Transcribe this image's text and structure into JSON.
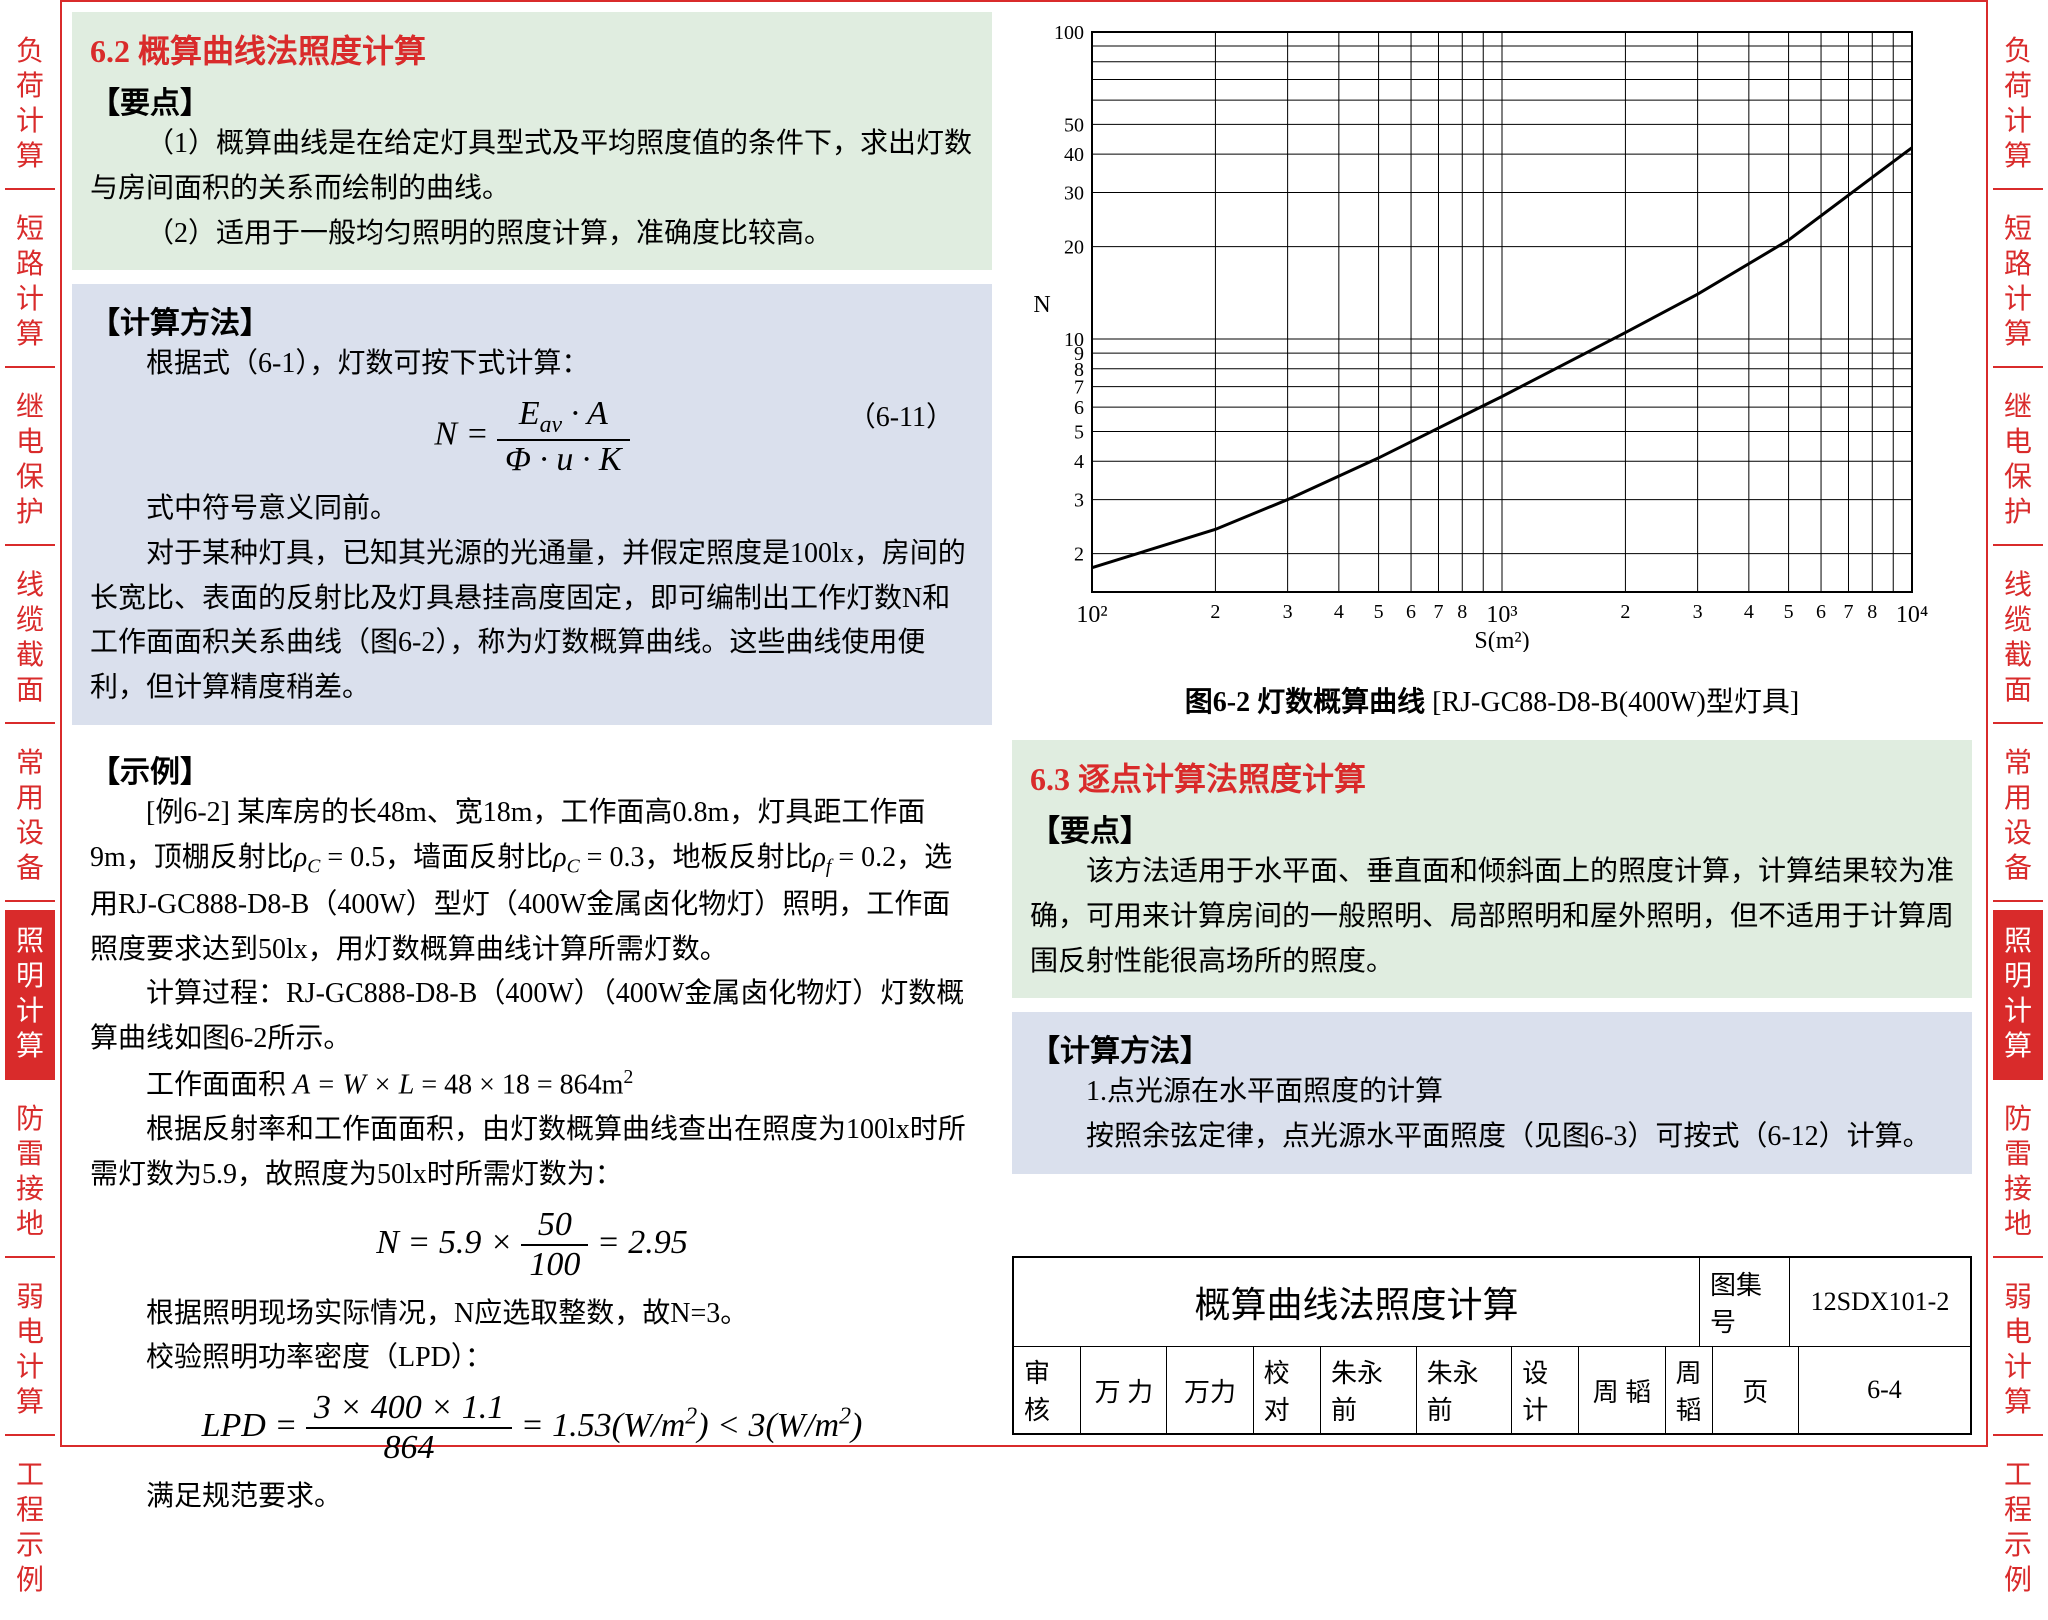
{
  "tabs": [
    {
      "label": "负荷计算",
      "active": false
    },
    {
      "label": "短路计算",
      "active": false
    },
    {
      "label": "继电保护",
      "active": false
    },
    {
      "label": "线缆截面",
      "active": false
    },
    {
      "label": "常用设备",
      "active": false
    },
    {
      "label": "照明计算",
      "active": true
    },
    {
      "label": "防雷接地",
      "active": false
    },
    {
      "label": "弱电计算",
      "active": false
    },
    {
      "label": "工程示例",
      "active": false
    }
  ],
  "section62": {
    "heading": "6.2 概算曲线法照度计算",
    "keypoints_title": "【要点】",
    "keypoints_1": "（1）概算曲线是在给定灯具型式及平均照度值的条件下，求出灯数与房间面积的关系而绘制的曲线。",
    "keypoints_2": "（2）适用于一般均匀照明的照度计算，准确度比较高。",
    "method_title": "【计算方法】",
    "method_intro": "根据式（6-1），灯数可按下式计算：",
    "formula_num": "（6-11）",
    "method_note": "式中符号意义同前。",
    "method_body": "对于某种灯具，已知其光源的光通量，并假定照度是100lx，房间的长宽比、表面的反射比及灯具悬挂高度固定，即可编制出工作灯数N和工作面面积关系曲线（图6-2），称为灯数概算曲线。这些曲线使用便利，但计算精度稍差。",
    "example_title": "【示例】",
    "example_p1_a": "[例6-2] 某库房的长48m、宽18m，工作面高0.8m，灯具距工作面9m，顶棚反射比",
    "example_p1_b": "ρ_C = 0.5",
    "example_p1_c": "，墙面反射比",
    "example_p1_d": "ρ_C = 0.3",
    "example_p1_e": "，地板反射比",
    "example_p1_f": "ρ_f = 0.2",
    "example_p1_g": "，选用RJ-GC888-D8-B（400W）型灯（400W金属卤化物灯）照明，工作面照度要求达到50lx，用灯数概算曲线计算所需灯数。",
    "example_p2": "计算过程：RJ-GC888-D8-B（400W）（400W金属卤化物灯）灯数概算曲线如图6-2所示。",
    "example_p3": "工作面面积",
    "area_formula": "A = W × L = 48 × 18 = 864m²",
    "example_p4": "根据反射率和工作面面积，由灯数概算曲线查出在照度为100lx时所需灯数为5.9，故照度为50lx时所需灯数为：",
    "n_formula": "N = 5.9 × 50/100 = 2.95",
    "example_p5": "根据照明现场实际情况，N应选取整数，故N=3。",
    "example_p6": "校验照明功率密度（LPD）：",
    "lpd_formula": "LPD = (3×400×1.1)/864 = 1.53(W/m²) < 3(W/m²)",
    "example_p7": "满足规范要求。"
  },
  "chart": {
    "type": "line-loglog",
    "x_label": "S(m²)",
    "y_label": "N",
    "x_ticks_major": [
      100,
      1000,
      10000
    ],
    "x_ticks_major_labels": [
      "10²",
      "10³",
      "10⁴"
    ],
    "x_ticks_minor": [
      2,
      3,
      4,
      5,
      6,
      7,
      8,
      2,
      3,
      4,
      5,
      6,
      7,
      8
    ],
    "y_ticks": [
      2,
      3,
      4,
      5,
      6,
      7,
      8,
      9,
      10,
      20,
      30,
      40,
      50,
      60,
      70,
      80,
      90,
      100
    ],
    "xlim": [
      100,
      10000
    ],
    "ylim": [
      1.5,
      100
    ],
    "line_points_x": [
      100,
      200,
      300,
      500,
      864,
      1000,
      2000,
      3000,
      5000,
      10000
    ],
    "line_points_y": [
      1.8,
      2.4,
      3.0,
      4.1,
      5.9,
      6.5,
      10.5,
      14.0,
      21.0,
      42.0
    ],
    "line_color": "#000000",
    "line_width": 3,
    "grid_color": "#000000",
    "grid_width": 1,
    "background_color": "#ffffff",
    "axis_fontsize": 24,
    "caption_bold": "图6-2 灯数概算曲线",
    "caption_rest": " [RJ-GC88-D8-B(400W)型灯具]"
  },
  "section63": {
    "heading": "6.3 逐点计算法照度计算",
    "keypoints_title": "【要点】",
    "keypoints_body": "该方法适用于水平面、垂直面和倾斜面上的照度计算，计算结果较为准确，可用来计算房间的一般照明、局部照明和屋外照明，但不适用于计算周围反射性能很高场所的照度。",
    "method_title": "【计算方法】",
    "method_1": "1.点光源在水平面照度的计算",
    "method_2": "按照余弦定律，点光源水平面照度（见图6-3）可按式（6-12）计算。"
  },
  "titleblock": {
    "title": "概算曲线法照度计算",
    "atlas_label": "图集号",
    "atlas_value": "12SDX101-2",
    "review_label": "审核",
    "review_name": "万 力",
    "check_label": "校对",
    "check_name": "朱永前",
    "design_label": "设计",
    "design_name": "周 韬",
    "page_label": "页",
    "page_value": "6-4"
  },
  "colors": {
    "red": "#d92b2b",
    "green_box": "#e0ede0",
    "blue_box": "#dae0ed"
  }
}
